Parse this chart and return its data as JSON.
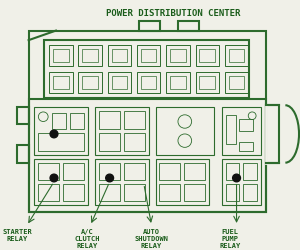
{
  "title": "POWER DISTRIBUTION CENTER",
  "bg_color": "#f0f0e8",
  "line_color": "#2d6b2d",
  "text_color": "#1a5c1a",
  "labels": [
    "STARTER\nRELAY",
    "A/C\nCLUTCH\nRELAY",
    "AUTO\nSHUTDOWN\nRELAY",
    "FUEL\nPUMP\nRELAY"
  ]
}
